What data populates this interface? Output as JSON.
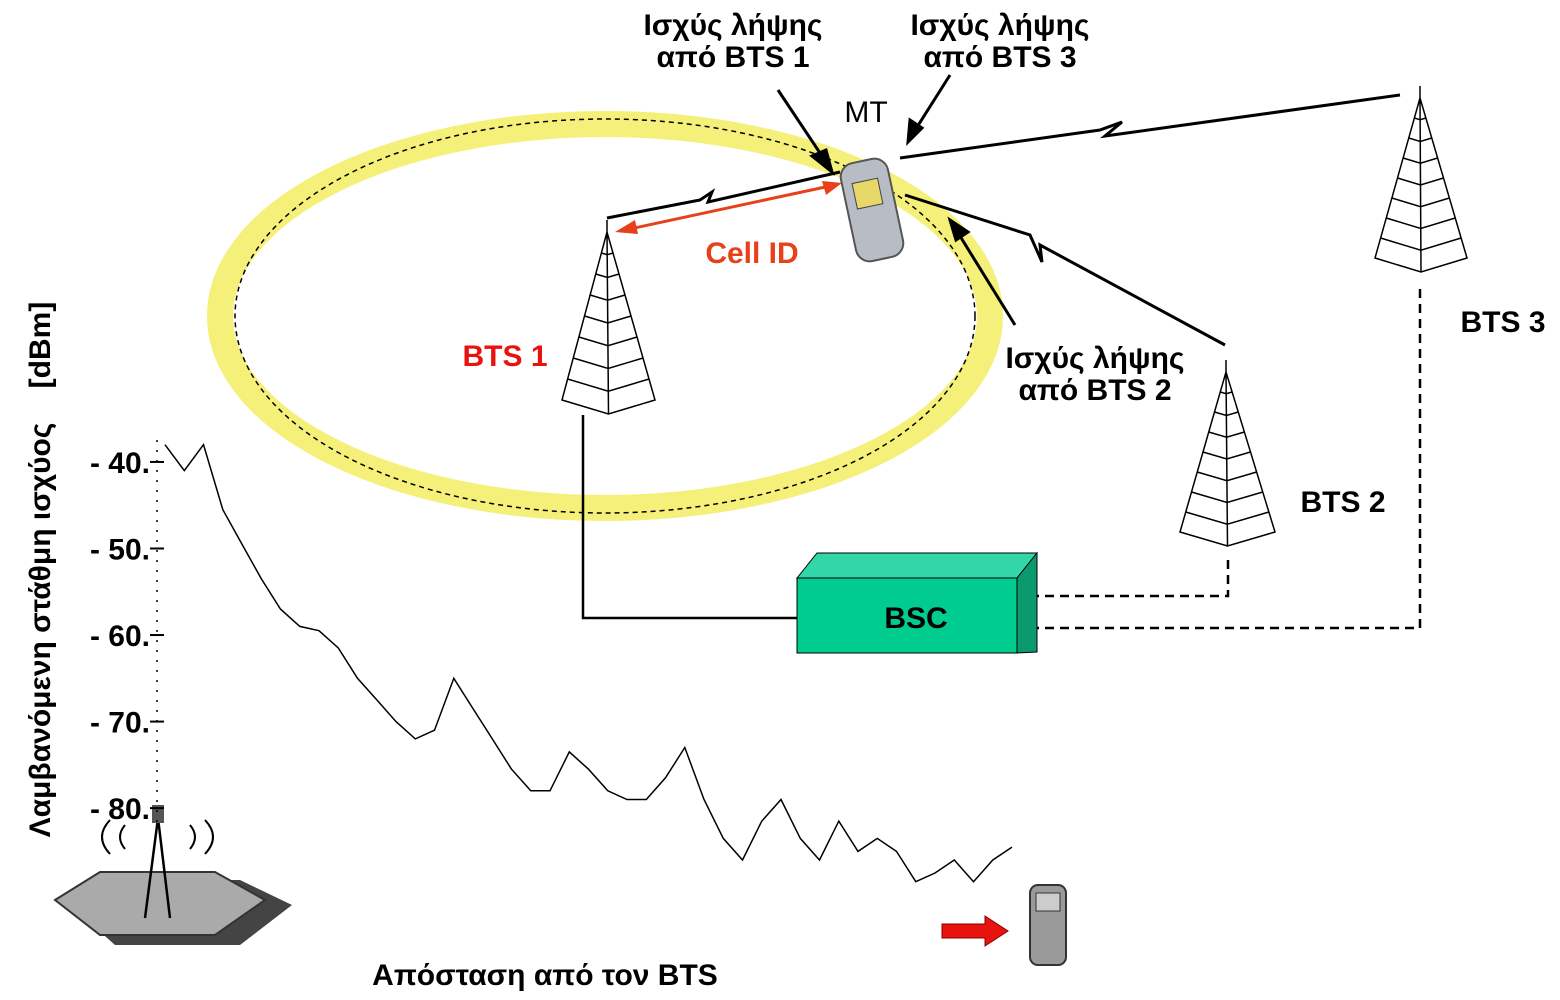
{
  "labels": {
    "rx_bts1": [
      "Ισχύς λήψης",
      "από BTS 1"
    ],
    "rx_bts3": [
      "Ισχύς λήψης",
      "από BTS 3"
    ],
    "rx_bts2": [
      "Ισχύς λήψης",
      "από BTS 2"
    ],
    "mt": "MT",
    "cell_id": "Cell ID",
    "bts1": "BTS 1",
    "bts2": "BTS 2",
    "bts3": "BTS 3",
    "bsc": "BSC"
  },
  "chart_data": {
    "type": "line",
    "y_label": "Λαμβανόμενη στάθμη ισχύος",
    "y_unit": "[dBm]",
    "x_label": "Απόσταση από τον BTS",
    "color": "#000000",
    "ylim": [
      -89,
      -37
    ],
    "yticks": [
      {
        "value": -40,
        "label": "- 40."
      },
      {
        "value": -50,
        "label": "- 50."
      },
      {
        "value": -60,
        "label": "- 60."
      },
      {
        "value": -70,
        "label": "- 70."
      },
      {
        "value": -80,
        "label": "- 80."
      }
    ],
    "values": [
      -38,
      -41,
      -38,
      -45.5,
      -49.5,
      -53.5,
      -57,
      -59,
      -59.5,
      -61.5,
      -65,
      -67.5,
      -70,
      -72,
      -71,
      -65,
      -68.5,
      -72,
      -75.5,
      -78,
      -78,
      -73.5,
      -75.5,
      -78,
      -79,
      -79,
      -76.5,
      -73,
      -79,
      -83.5,
      -86,
      -81.5,
      -79,
      -83.5,
      -86,
      -81.5,
      -85,
      -83.5,
      -85,
      -88.5,
      -87.5,
      -86,
      -88.5,
      -86,
      -84.5
    ]
  }
}
